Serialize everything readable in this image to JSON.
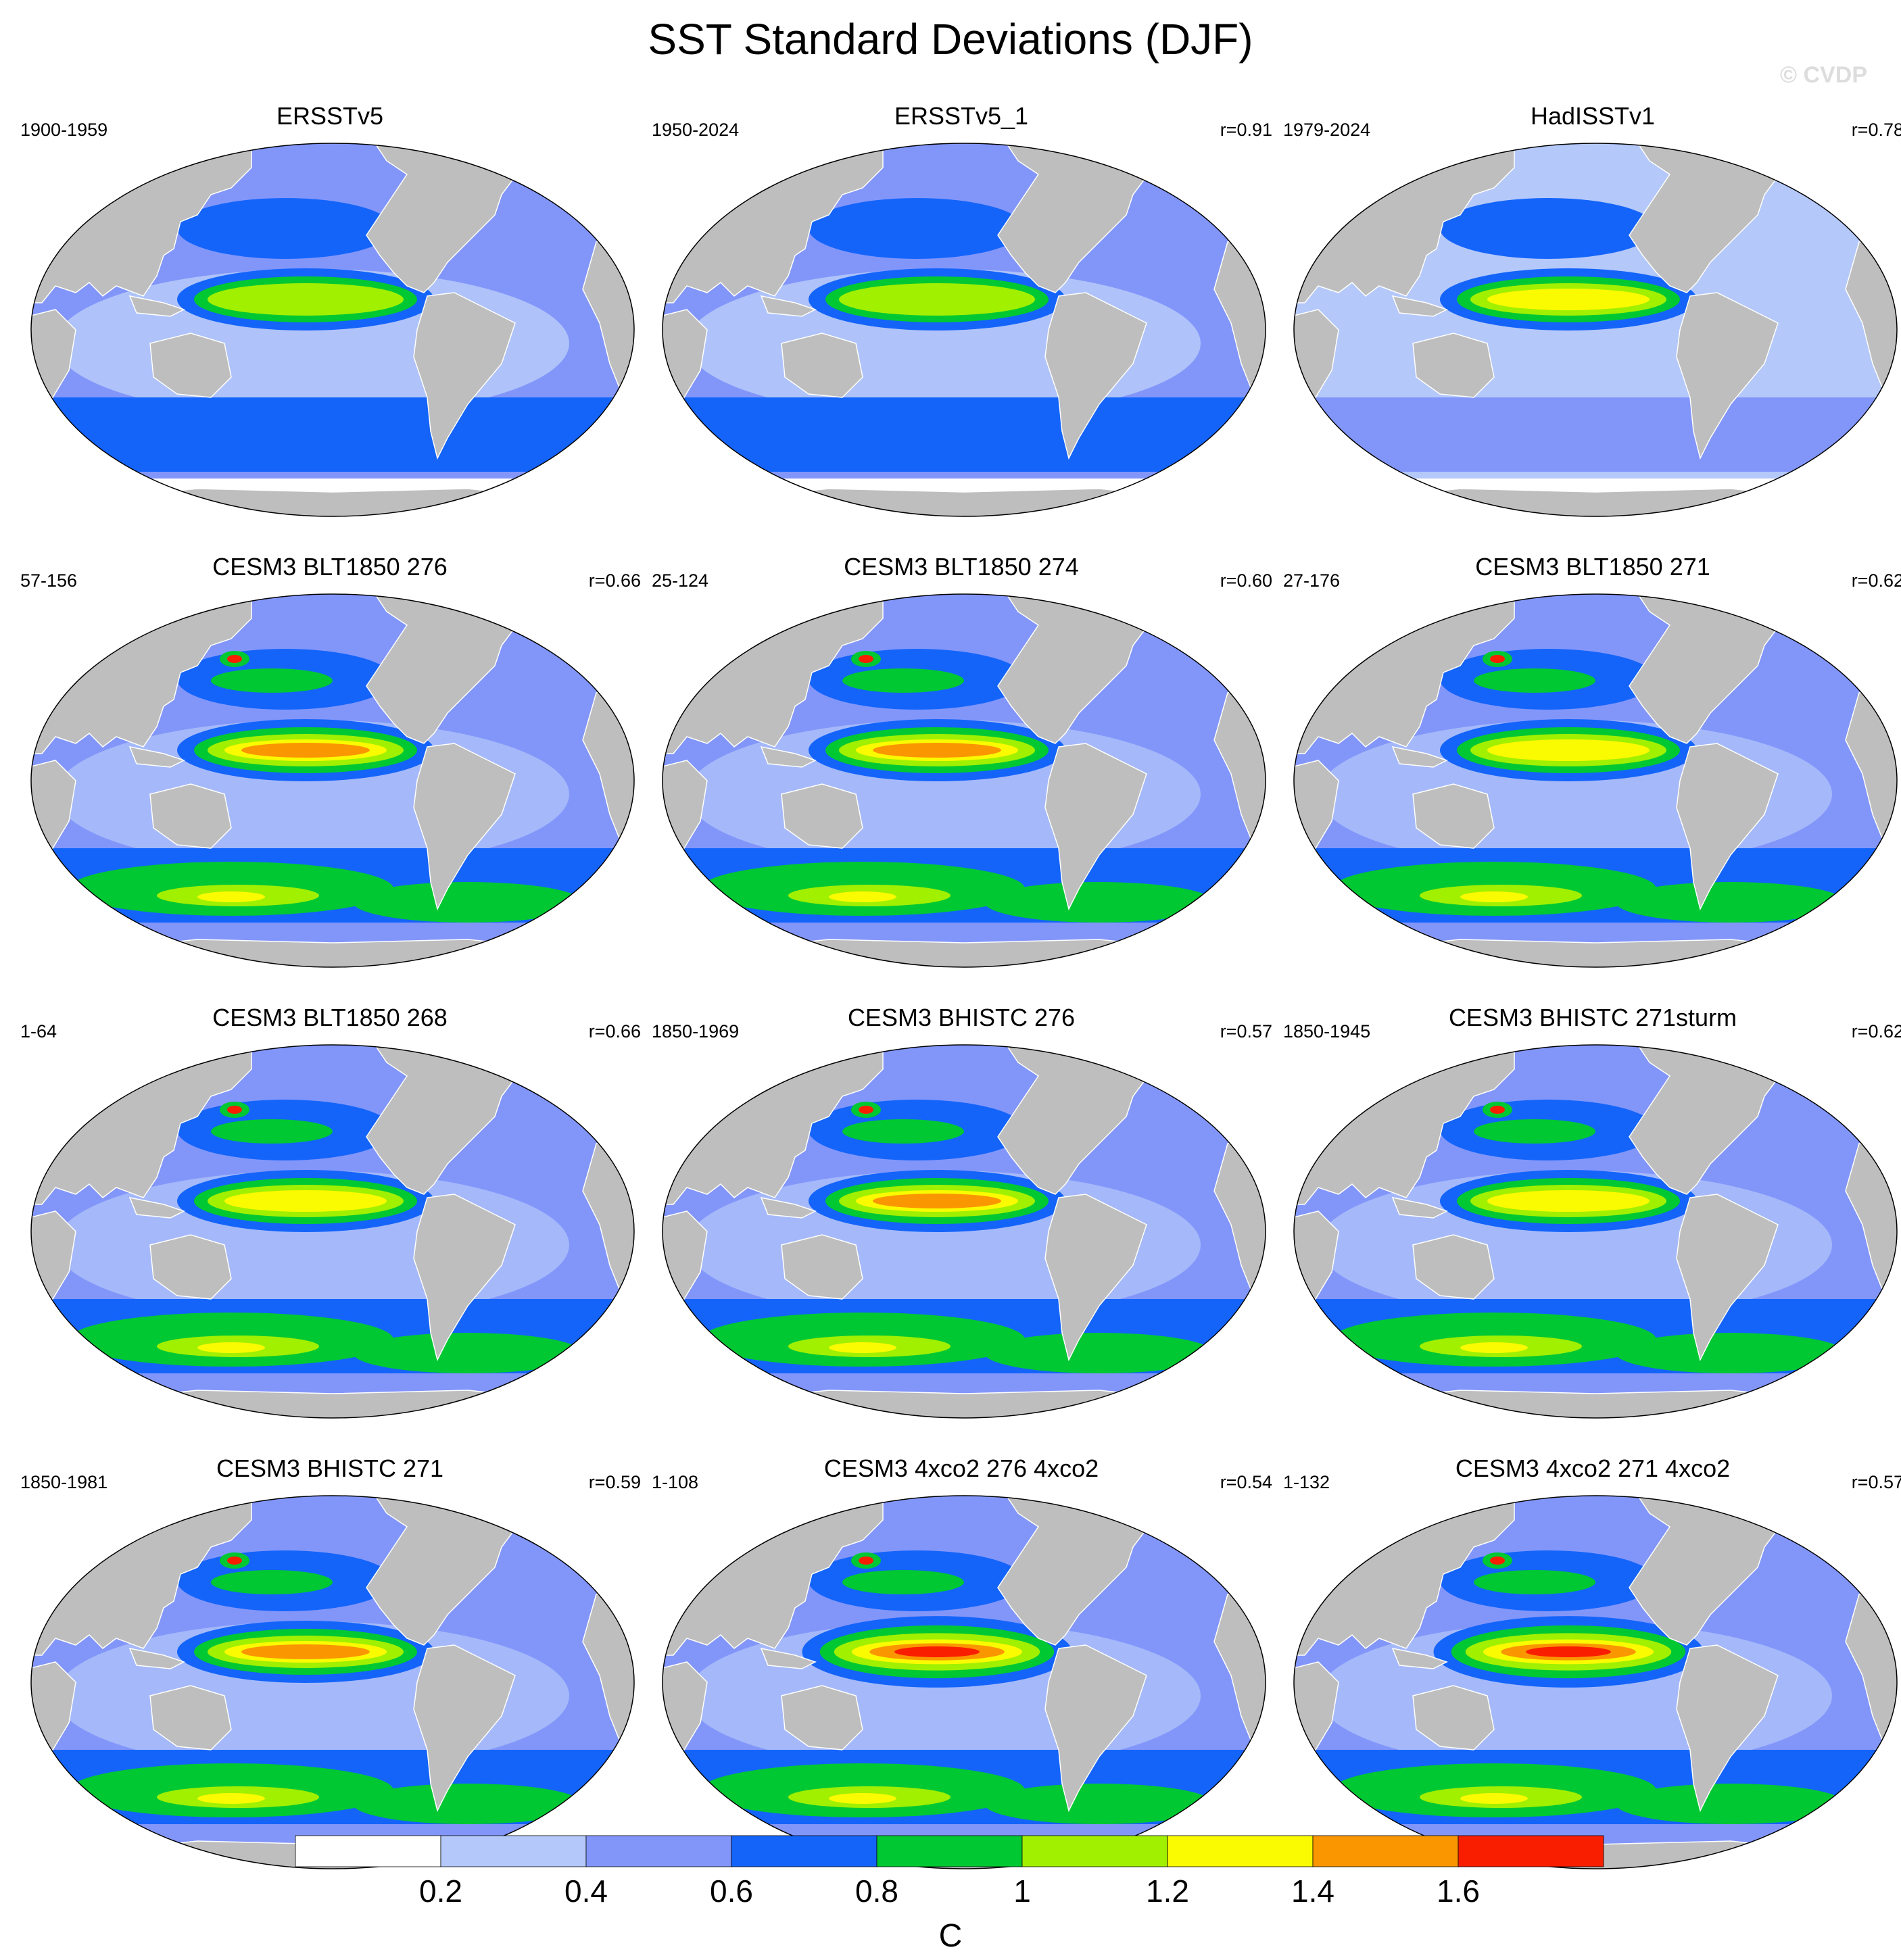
{
  "title": "SST Standard Deviations (DJF)",
  "watermark": "© CVDP",
  "colorbar": {
    "unit": "C",
    "levels": [
      0.2,
      0.4,
      0.6,
      0.8,
      1,
      1.2,
      1.4,
      1.6
    ],
    "tick_labels": [
      "0.2",
      "0.4",
      "0.6",
      "0.8",
      "1",
      "1.2",
      "1.4",
      "1.6"
    ],
    "colors": [
      "#ffffff",
      "#b4c8fa",
      "#8296fa",
      "#1464fa",
      "#00c832",
      "#a0f000",
      "#fafa00",
      "#fa9600",
      "#fa1e00"
    ]
  },
  "land_color": "#bebebe",
  "panels": [
    {
      "title": "ERSSTv5",
      "range": "1900-1959",
      "corr": ""
    },
    {
      "title": "ERSSTv5_1",
      "range": "1950-2024",
      "corr": "r=0.91"
    },
    {
      "title": "HadISSTv1",
      "range": "1979-2024",
      "corr": "r=0.78"
    },
    {
      "title": "CESM3 BLT1850 276",
      "range": "57-156",
      "corr": "r=0.66"
    },
    {
      "title": "CESM3 BLT1850 274",
      "range": "25-124",
      "corr": "r=0.60"
    },
    {
      "title": "CESM3 BLT1850 271",
      "range": "27-176",
      "corr": "r=0.62"
    },
    {
      "title": "CESM3 BLT1850 268",
      "range": "1-64",
      "corr": "r=0.66"
    },
    {
      "title": "CESM3 BHISTC 276",
      "range": "1850-1969",
      "corr": "r=0.57"
    },
    {
      "title": "CESM3 BHISTC 271sturm",
      "range": "1850-1945",
      "corr": "r=0.62"
    },
    {
      "title": "CESM3 BHISTC 271",
      "range": "1850-1981",
      "corr": "r=0.59"
    },
    {
      "title": "CESM3 4xco2 276 4xco2",
      "range": "1-108",
      "corr": "r=0.54"
    },
    {
      "title": "CESM3 4xco2 271 4xco2",
      "range": "1-132",
      "corr": "r=0.57"
    }
  ],
  "chart_data": {
    "type": "heatmap",
    "title": "SST Standard Deviations (DJF)",
    "colorbar_label": "C",
    "levels": [
      0.2,
      0.4,
      0.6,
      0.8,
      1,
      1.2,
      1.4,
      1.6
    ],
    "panels": [
      {
        "name": "ERSSTv5",
        "period": "1900-1959",
        "pattern_correlation": null,
        "nino_max": 1.1
      },
      {
        "name": "ERSSTv5_1",
        "period": "1950-2024",
        "pattern_correlation": 0.91,
        "nino_max": 1.1
      },
      {
        "name": "HadISSTv1",
        "period": "1979-2024",
        "pattern_correlation": 0.78,
        "nino_max": 1.3
      },
      {
        "name": "CESM3 BLT1850 276",
        "period": "57-156",
        "pattern_correlation": 0.66,
        "nino_max": 1.5
      },
      {
        "name": "CESM3 BLT1850 274",
        "period": "25-124",
        "pattern_correlation": 0.6,
        "nino_max": 1.5
      },
      {
        "name": "CESM3 BLT1850 271",
        "period": "27-176",
        "pattern_correlation": 0.62,
        "nino_max": 1.3
      },
      {
        "name": "CESM3 BLT1850 268",
        "period": "1-64",
        "pattern_correlation": 0.66,
        "nino_max": 1.3
      },
      {
        "name": "CESM3 BHISTC 276",
        "period": "1850-1969",
        "pattern_correlation": 0.57,
        "nino_max": 1.5
      },
      {
        "name": "CESM3 BHISTC 271sturm",
        "period": "1850-1945",
        "pattern_correlation": 0.62,
        "nino_max": 1.3
      },
      {
        "name": "CESM3 BHISTC 271",
        "period": "1850-1981",
        "pattern_correlation": 0.59,
        "nino_max": 1.5
      },
      {
        "name": "CESM3 4xco2 276 4xco2",
        "period": "1-108",
        "pattern_correlation": 0.54,
        "nino_max": 1.7
      },
      {
        "name": "CESM3 4xco2 271 4xco2",
        "period": "1-132",
        "pattern_correlation": 0.57,
        "nino_max": 1.7
      }
    ]
  }
}
